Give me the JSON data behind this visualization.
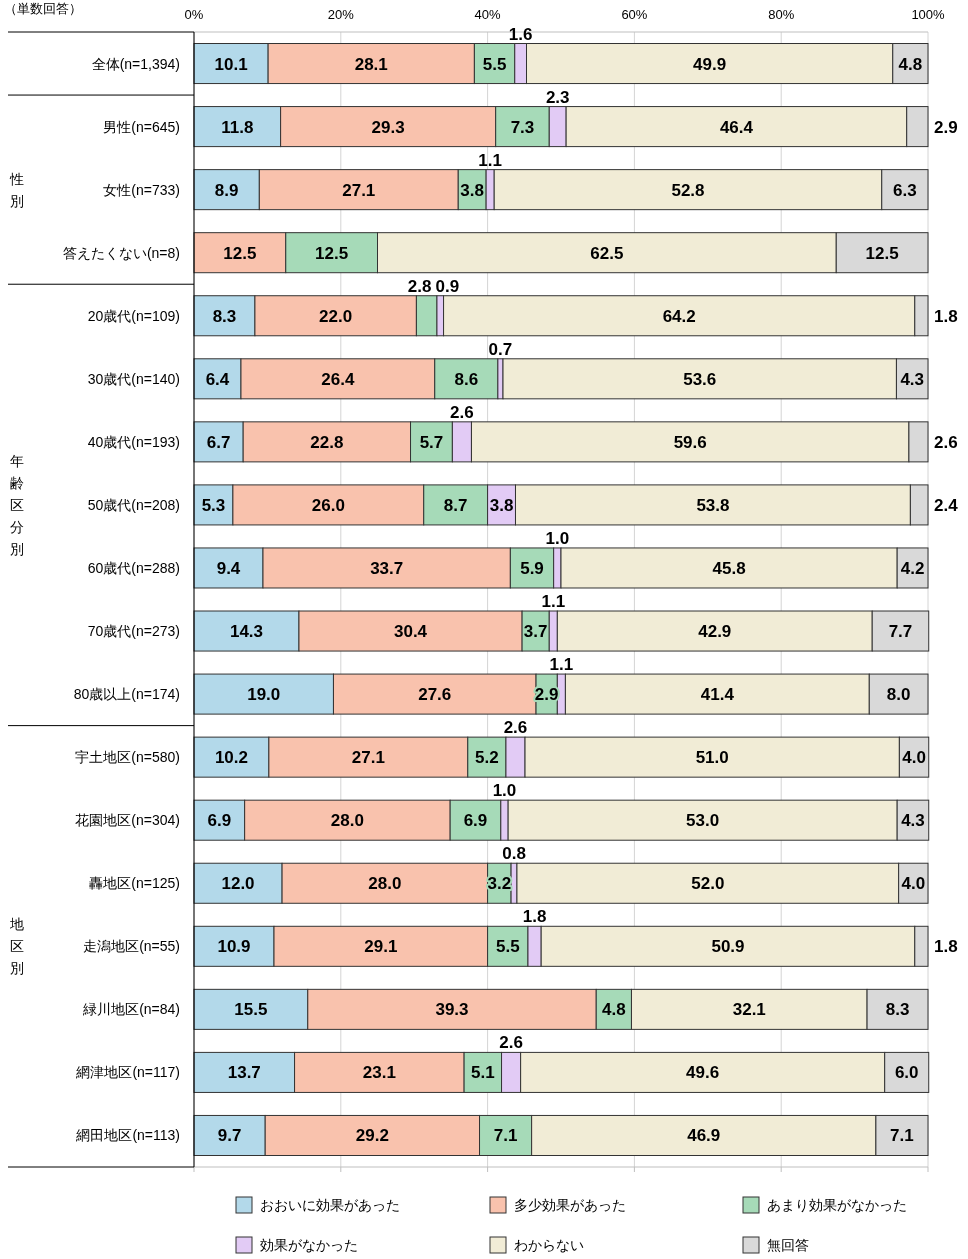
{
  "chart_data": {
    "type": "bar",
    "orientation": "horizontal",
    "stacked": true,
    "categories": [
      "全体(n=1,394)",
      "男性(n=645)",
      "女性(n=733)",
      "答えたくない(n=8)",
      "20歳代(n=109)",
      "30歳代(n=140)",
      "40歳代(n=193)",
      "50歳代(n=208)",
      "60歳代(n=288)",
      "70歳代(n=273)",
      "80歳以上(n=174)",
      "宇土地区(n=580)",
      "花園地区(n=304)",
      "轟地区(n=125)",
      "走潟地区(n=55)",
      "緑川地区(n=84)",
      "網津地区(n=117)",
      "網田地区(n=113)"
    ],
    "series": [
      {
        "name": "おおいに効果があった",
        "color": "#b3d9ea",
        "values": [
          10.1,
          11.8,
          8.9,
          null,
          8.3,
          6.4,
          6.7,
          5.3,
          9.4,
          14.3,
          19.0,
          10.2,
          6.9,
          12.0,
          10.9,
          15.5,
          13.7,
          9.7
        ],
        "value_labels": [
          "10.1",
          "11.8",
          "8.9",
          null,
          "8.3",
          "6.4",
          "6.7",
          "5.3",
          "9.4",
          "14.3",
          "19.0",
          "10.2",
          "6.9",
          "12.0",
          "10.9",
          "15.5",
          "13.7",
          "9.7"
        ]
      },
      {
        "name": "多少効果があった",
        "color": "#f9c2ad",
        "values": [
          28.1,
          29.3,
          27.1,
          12.5,
          22.0,
          26.4,
          22.8,
          26.0,
          33.7,
          30.4,
          27.6,
          27.1,
          28.0,
          28.0,
          29.1,
          39.3,
          23.1,
          29.2
        ],
        "value_labels": [
          "28.1",
          "29.3",
          "27.1",
          "12.5",
          "22.0",
          "26.4",
          "22.8",
          "26.0",
          "33.7",
          "30.4",
          "27.6",
          "27.1",
          "28.0",
          "28.0",
          "29.1",
          "39.3",
          "23.1",
          "29.2"
        ]
      },
      {
        "name": "あまり効果がなかった",
        "color": "#a6dab8",
        "values": [
          5.5,
          7.3,
          3.8,
          12.5,
          2.8,
          8.6,
          5.7,
          8.7,
          5.9,
          3.7,
          2.9,
          5.2,
          6.9,
          3.2,
          5.5,
          4.8,
          5.1,
          7.1
        ],
        "value_labels": [
          "5.5",
          "7.3",
          "3.8",
          "12.5",
          "2.8",
          "8.6",
          "5.7",
          "8.7",
          "5.9",
          "3.7",
          "2.9",
          "5.2",
          "6.9",
          "3.2",
          "5.5",
          "4.8",
          "5.1",
          "7.1"
        ]
      },
      {
        "name": "効果がなかった",
        "color": "#e2cbf5",
        "values": [
          1.6,
          2.3,
          1.1,
          null,
          0.9,
          0.7,
          2.6,
          3.8,
          1.0,
          1.1,
          1.1,
          2.6,
          1.0,
          0.8,
          1.8,
          null,
          2.6,
          null
        ],
        "value_labels": [
          "1.6",
          "2.3",
          "1.1",
          null,
          "0.9",
          "0.7",
          "2.6",
          "3.8",
          "1.0",
          "1.1",
          "1.1",
          "2.6",
          "1.0",
          "0.8",
          "1.8",
          null,
          "2.6",
          null
        ]
      },
      {
        "name": "わからない",
        "color": "#f1ecd6",
        "values": [
          49.9,
          46.4,
          52.8,
          62.5,
          64.2,
          53.6,
          59.6,
          53.8,
          45.8,
          42.9,
          41.4,
          51.0,
          53.0,
          52.0,
          50.9,
          32.1,
          49.6,
          46.9
        ],
        "value_labels": [
          "49.9",
          "46.4",
          "52.8",
          "62.5",
          "64.2",
          "53.6",
          "59.6",
          "53.8",
          "45.8",
          "42.9",
          "41.4",
          "51.0",
          "53.0",
          "52.0",
          "50.9",
          "32.1",
          "49.6",
          "46.9"
        ]
      },
      {
        "name": "無回答",
        "color": "#d9d9d9",
        "values": [
          4.8,
          2.9,
          6.3,
          12.5,
          1.8,
          4.3,
          2.6,
          2.4,
          4.2,
          7.7,
          8.0,
          4.0,
          4.3,
          4.0,
          1.8,
          8.3,
          6.0,
          7.1
        ],
        "value_labels": [
          "4.8",
          "2.9",
          "6.3",
          "12.5",
          "1.8",
          "4.3",
          "2.6",
          "2.4",
          "4.2",
          "7.7",
          "8.0",
          "4.0",
          "4.3",
          "4.0",
          "1.8",
          "8.3",
          "6.0",
          "7.1"
        ]
      }
    ],
    "xlim": [
      0,
      100
    ],
    "xticks": [
      {
        "value": 0,
        "label": "0%"
      },
      {
        "value": 20,
        "label": "20%"
      },
      {
        "value": 40,
        "label": "40%"
      },
      {
        "value": 60,
        "label": "60%"
      },
      {
        "value": 80,
        "label": "80%"
      },
      {
        "value": 100,
        "label": "100%"
      }
    ],
    "grid": "x",
    "legend": "bottom",
    "annotations": [
      "（単数回答）",
      "性別",
      "年齢区分別",
      "地区別"
    ]
  }
}
